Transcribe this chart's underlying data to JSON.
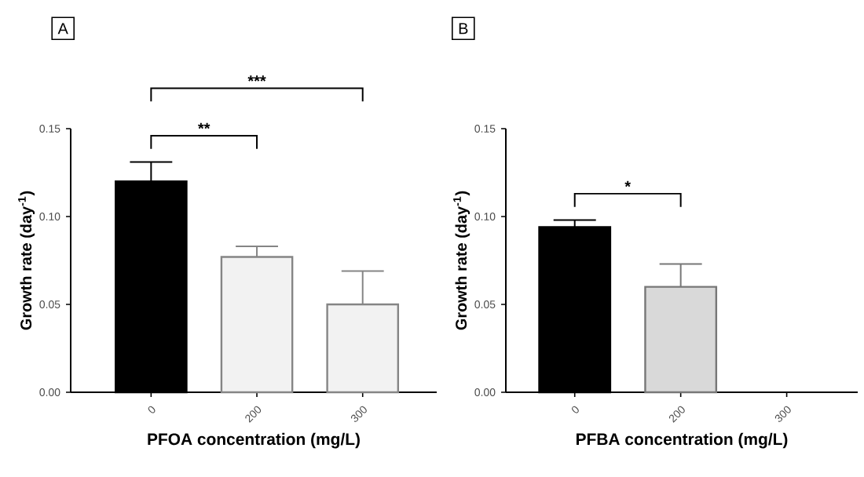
{
  "chart_data": [
    {
      "type": "bar",
      "xlabel": "PFOA concentration (mg/L)",
      "ylabel": "Growth rate (day$^{-1}$)",
      "categories": [
        "0",
        "200",
        "300"
      ],
      "values": [
        0.12,
        0.077,
        0.05
      ],
      "colors": [
        "#000000",
        "#f2f2f2",
        "#f2f2f2"
      ],
      "errors": [
        [
          0.12,
          0.131
        ],
        [
          0.077,
          0.083
        ],
        [
          0.05,
          0.069
        ]
      ],
      "ylim": [
        0,
        0.15
      ],
      "yticks": [
        {
          "value": 0,
          "label": "0.00"
        },
        {
          "value": 0.05,
          "label": "0.05"
        },
        {
          "value": 0.1,
          "label": "0.10"
        },
        {
          "value": 0.15,
          "label": "0.15"
        }
      ],
      "annotations": [
        "A",
        "**",
        "***"
      ]
    },
    {
      "type": "bar",
      "xlabel": "PFBA concentration (mg/L)",
      "ylabel": "Growth rate (day$^{-1}$)",
      "categories": [
        "0",
        "200",
        "300"
      ],
      "values": [
        0.094,
        0.06,
        null
      ],
      "colors": [
        "#000000",
        "#d9d9d9",
        "#d9d9d9"
      ],
      "errors": [
        [
          0.094,
          0.098
        ],
        [
          0.06,
          0.073
        ],
        null
      ],
      "ylim": [
        0,
        0.15
      ],
      "yticks": [
        {
          "value": 0,
          "label": "0.00"
        },
        {
          "value": 0.05,
          "label": "0.05"
        },
        {
          "value": 0.1,
          "label": "0.10"
        },
        {
          "value": 0.15,
          "label": "0.15"
        }
      ],
      "annotations": [
        "B",
        "*"
      ]
    }
  ]
}
